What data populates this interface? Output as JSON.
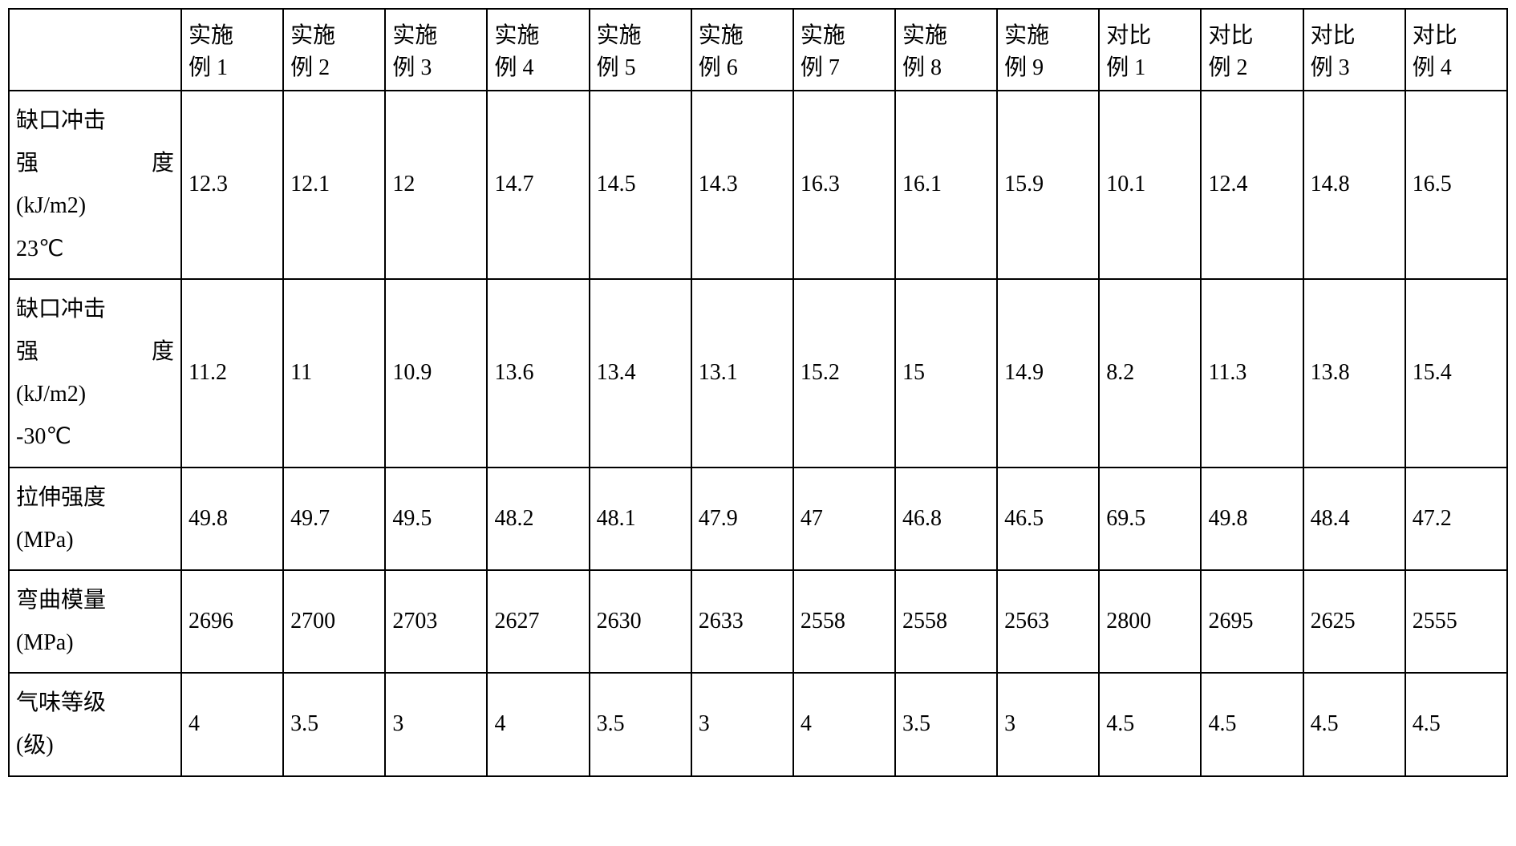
{
  "table": {
    "type": "table",
    "background_color": "#ffffff",
    "border_color": "#000000",
    "text_color": "#000000",
    "font_family": "SimSun",
    "font_size_pt": 20,
    "columns": [
      {
        "label_line1": "",
        "label_line2": ""
      },
      {
        "label_line1": "实施",
        "label_line2": "例 1"
      },
      {
        "label_line1": "实施",
        "label_line2": "例 2"
      },
      {
        "label_line1": "实施",
        "label_line2": "例 3"
      },
      {
        "label_line1": "实施",
        "label_line2": "例 4"
      },
      {
        "label_line1": "实施",
        "label_line2": "例 5"
      },
      {
        "label_line1": "实施",
        "label_line2": "例 6"
      },
      {
        "label_line1": "实施",
        "label_line2": "例 7"
      },
      {
        "label_line1": "实施",
        "label_line2": "例 8"
      },
      {
        "label_line1": "实施",
        "label_line2": "例 9"
      },
      {
        "label_line1": "对比",
        "label_line2": "例 1"
      },
      {
        "label_line1": "对比",
        "label_line2": "例 2"
      },
      {
        "label_line1": "对比",
        "label_line2": "例 3"
      },
      {
        "label_line1": "对比",
        "label_line2": "例 4"
      }
    ],
    "rows": [
      {
        "label_line1a": "缺口冲击",
        "label_line2_left": "强",
        "label_line2_right": "度",
        "label_line3": "(kJ/m2)",
        "label_line4": "23℃",
        "values": [
          "12.3",
          "12.1",
          "12",
          "14.7",
          "14.5",
          "14.3",
          "16.3",
          "16.1",
          "15.9",
          "10.1",
          "12.4",
          "14.8",
          "16.5"
        ]
      },
      {
        "label_line1a": "缺口冲击",
        "label_line2_left": "强",
        "label_line2_right": "度",
        "label_line3": "(kJ/m2)",
        "label_line4": "-30℃",
        "values": [
          "11.2",
          "11",
          "10.9",
          "13.6",
          "13.4",
          "13.1",
          "15.2",
          "15",
          "14.9",
          "8.2",
          "11.3",
          "13.8",
          "15.4"
        ]
      },
      {
        "label_line1a": "拉伸强度",
        "label_line2_left": "(MPa)",
        "label_line2_right": "",
        "label_line3": "",
        "label_line4": "",
        "values": [
          "49.8",
          "49.7",
          "49.5",
          "48.2",
          "48.1",
          "47.9",
          "47",
          "46.8",
          "46.5",
          "69.5",
          "49.8",
          "48.4",
          "47.2"
        ]
      },
      {
        "label_line1a": "弯曲模量",
        "label_line2_left": "(MPa)",
        "label_line2_right": "",
        "label_line3": "",
        "label_line4": "",
        "values": [
          "2696",
          "2700",
          "2703",
          "2627",
          "2630",
          "2633",
          "2558",
          "2558",
          "2563",
          "2800",
          "2695",
          "2625",
          "2555"
        ]
      },
      {
        "label_line1a": "气味等级",
        "label_line2_left": "(级)",
        "label_line2_right": "",
        "label_line3": "",
        "label_line4": "",
        "values": [
          "4",
          "3.5",
          "3",
          "4",
          "3.5",
          "3",
          "4",
          "3.5",
          "3",
          "4.5",
          "4.5",
          "4.5",
          "4.5"
        ]
      }
    ]
  }
}
